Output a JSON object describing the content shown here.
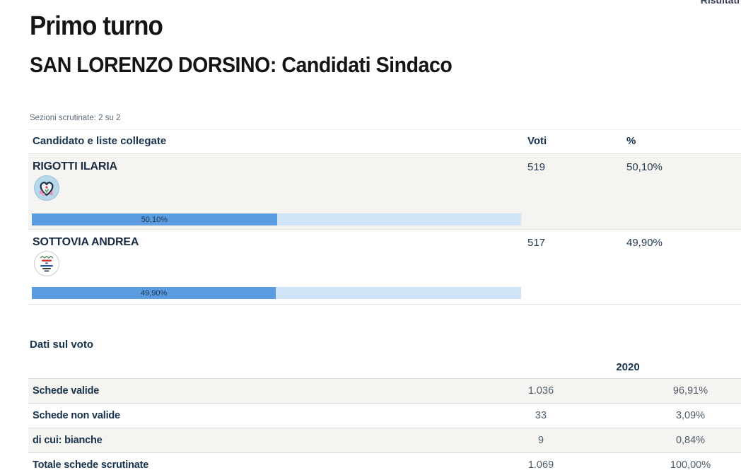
{
  "header": {
    "top_right_link": "Risultati",
    "title": "Primo turno",
    "subtitle": "SAN LORENZO DORSINO: Candidati Sindaco",
    "sections_scrutinized": "Sezioni scrutinate: 2 su 2"
  },
  "candidates": {
    "col_candidate": "Candidato e liste collegate",
    "col_votes": "Voti",
    "col_percent": "%",
    "rows": [
      {
        "name": "RIGOTTI ILARIA",
        "votes": "519",
        "percent": "50,10%",
        "bar_label": "50,10%",
        "bar_value": 50.1,
        "logo_icon": "heart-flowers-list-badge"
      },
      {
        "name": "SOTTOVIA ANDREA",
        "votes": "517",
        "percent": "49,90%",
        "bar_label": "49,90%",
        "bar_value": 49.9,
        "logo_icon": "white-civic-list-badge"
      }
    ]
  },
  "vote_data": {
    "section_title": "Dati sul voto",
    "year": "2020",
    "rows": [
      {
        "label": "Schede valide",
        "value": "1.036",
        "percent": "96,91%"
      },
      {
        "label": "Schede non valide",
        "value": "33",
        "percent": "3,09%"
      },
      {
        "label": "di cui: bianche",
        "value": "9",
        "percent": "0,84%"
      },
      {
        "label": "Totale schede scrutinate",
        "value": "1.069",
        "percent": "100,00%"
      }
    ]
  },
  "colors": {
    "bar_fill": "#5b9ce0",
    "bar_track": "#cfe5f7",
    "heading_text": "#17324d",
    "muted_text": "#5a6b7a"
  }
}
